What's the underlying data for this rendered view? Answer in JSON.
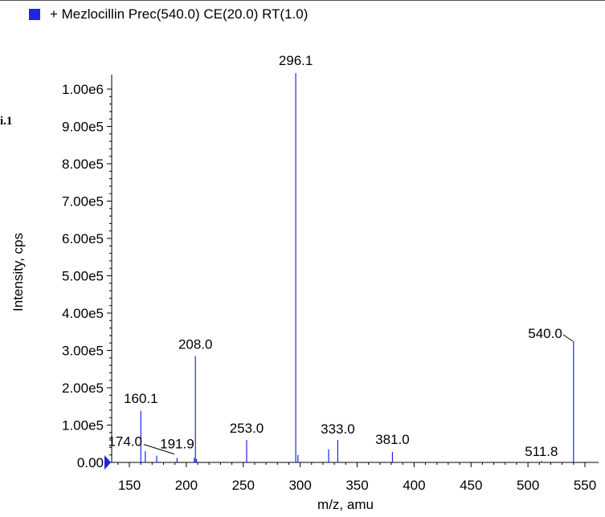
{
  "legend": {
    "label": "+ Mezlocillin Prec(540.0) CE(20.0) RT(1.0)",
    "color": "#1f24e6"
  },
  "side_label": "i.1",
  "chart_data": {
    "type": "bar",
    "title": "",
    "xlabel": "m/z, amu",
    "ylabel": "Intensity, cps",
    "xlim": [
      101,
      555
    ],
    "ylim": [
      0,
      1070000
    ],
    "x_ticks": [
      150,
      200,
      250,
      300,
      350,
      400,
      450,
      500,
      550
    ],
    "y_ticks": [
      {
        "value": 0,
        "label": "0.00"
      },
      {
        "value": 100000,
        "label": "1.00e5"
      },
      {
        "value": 200000,
        "label": "2.00e5"
      },
      {
        "value": 300000,
        "label": "3.00e5"
      },
      {
        "value": 400000,
        "label": "4.00e5"
      },
      {
        "value": 500000,
        "label": "5.00e5"
      },
      {
        "value": 600000,
        "label": "6.00e5"
      },
      {
        "value": 700000,
        "label": "7.00e5"
      },
      {
        "value": 800000,
        "label": "8.00e5"
      },
      {
        "value": 900000,
        "label": "9.00e5"
      },
      {
        "value": 1000000,
        "label": "1.00e6"
      }
    ],
    "grid": false,
    "series": [
      {
        "color": "#1f24e6",
        "peaks": [
          {
            "x": 160.1,
            "y": 138000
          },
          {
            "x": 164.0,
            "y": 30000
          },
          {
            "x": 174.0,
            "y": 18000
          },
          {
            "x": 191.9,
            "y": 12000
          },
          {
            "x": 207.0,
            "y": 12000
          },
          {
            "x": 208.0,
            "y": 285000
          },
          {
            "x": 209.0,
            "y": 9000
          },
          {
            "x": 253.0,
            "y": 60000
          },
          {
            "x": 296.1,
            "y": 1043000
          },
          {
            "x": 298.0,
            "y": 20000
          },
          {
            "x": 325.0,
            "y": 35000
          },
          {
            "x": 333.0,
            "y": 60000
          },
          {
            "x": 381.0,
            "y": 28000
          },
          {
            "x": 511.8,
            "y": 4000
          },
          {
            "x": 540.0,
            "y": 325000
          }
        ]
      }
    ],
    "peak_labels": [
      {
        "x": 296.1,
        "text": "296.1"
      },
      {
        "x": 208.0,
        "text": "208.0"
      },
      {
        "x": 160.1,
        "text": "160.1"
      },
      {
        "x": 253.0,
        "text": "253.0"
      },
      {
        "x": 333.0,
        "text": "333.0"
      },
      {
        "x": 381.0,
        "text": "381.0"
      },
      {
        "x": 174.0,
        "text": "174.0"
      },
      {
        "x": 191.9,
        "text": "191.9"
      },
      {
        "x": 511.8,
        "text": "511.8"
      },
      {
        "x": 540.0,
        "text": "540.0"
      }
    ]
  }
}
